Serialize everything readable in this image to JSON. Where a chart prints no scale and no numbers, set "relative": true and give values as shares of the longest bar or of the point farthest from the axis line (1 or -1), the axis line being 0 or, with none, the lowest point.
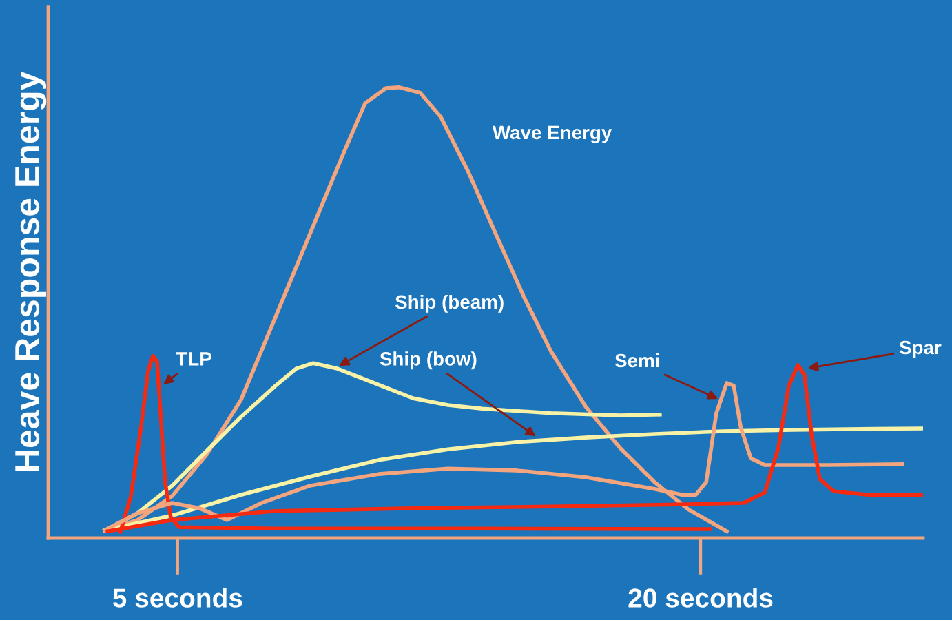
{
  "chart_data": {
    "type": "line",
    "relative": true,
    "ylabel": "Heave Response Energy",
    "xlim": [
      1.29,
      26.38
    ],
    "xticks": [
      {
        "value": 5,
        "label": "5 seconds"
      },
      {
        "value": 20,
        "label": "20 seconds"
      }
    ],
    "grid": false,
    "legend": false,
    "marker": "none",
    "line_style": "solid",
    "series": [
      {
        "name": "Wave Energy",
        "color": "#f4a57e",
        "x": [
          2.91,
          3.85,
          4.84,
          5.83,
          6.82,
          7.81,
          8.79,
          9.78,
          10.38,
          10.97,
          11.36,
          11.96,
          12.55,
          13.34,
          14.13,
          14.92,
          15.71,
          16.7,
          17.69,
          18.68,
          19.66,
          20.75
        ],
        "values": [
          0.017,
          0.04,
          0.093,
          0.185,
          0.307,
          0.491,
          0.674,
          0.858,
          0.965,
          0.998,
          1.0,
          0.988,
          0.934,
          0.812,
          0.674,
          0.537,
          0.414,
          0.292,
          0.2,
          0.124,
          0.063,
          0.015
        ]
      },
      {
        "name": "Ship (beam)",
        "color": "#f7f2a6",
        "x": [
          2.91,
          3.85,
          4.84,
          5.83,
          6.82,
          7.81,
          8.4,
          8.89,
          9.58,
          10.57,
          11.76,
          12.75,
          13.74,
          15.71,
          17.69,
          18.83
        ],
        "values": [
          0.017,
          0.055,
          0.116,
          0.193,
          0.269,
          0.338,
          0.376,
          0.388,
          0.376,
          0.346,
          0.31,
          0.295,
          0.287,
          0.277,
          0.272,
          0.274
        ]
      },
      {
        "name": "Ship (bow)",
        "color": "#f7f2a6",
        "x": [
          2.91,
          4.84,
          6.82,
          8.79,
          10.77,
          12.75,
          14.72,
          16.7,
          18.68,
          20.65,
          22.63,
          24.6,
          26.38
        ],
        "values": [
          0.017,
          0.05,
          0.096,
          0.136,
          0.173,
          0.197,
          0.213,
          0.223,
          0.231,
          0.237,
          0.24,
          0.242,
          0.243
        ]
      },
      {
        "name": "TLP",
        "color": "#f52a10",
        "x": [
          3.36,
          3.66,
          3.95,
          4.15,
          4.29,
          4.41,
          4.51,
          4.64,
          4.8,
          5.04,
          7.81,
          13.74,
          20.26
        ],
        "values": [
          0.014,
          0.093,
          0.246,
          0.369,
          0.404,
          0.391,
          0.277,
          0.124,
          0.047,
          0.024,
          0.021,
          0.021,
          0.02
        ]
      },
      {
        "name": "Semi",
        "color": "#f4a57e",
        "x": [
          2.91,
          3.85,
          4.84,
          5.63,
          6.42,
          7.41,
          8.79,
          10.77,
          12.75,
          14.72,
          16.7,
          18.68,
          19.47,
          19.86,
          20.16,
          20.45,
          20.75,
          20.95,
          21.15,
          21.44,
          21.84,
          23.62,
          25.79
        ],
        "values": [
          0.017,
          0.055,
          0.078,
          0.066,
          0.04,
          0.078,
          0.116,
          0.142,
          0.154,
          0.15,
          0.135,
          0.109,
          0.096,
          0.096,
          0.124,
          0.277,
          0.344,
          0.338,
          0.246,
          0.177,
          0.162,
          0.162,
          0.164
        ]
      },
      {
        "name": "Spar",
        "color": "#f52a10",
        "x": [
          2.99,
          4.84,
          7.81,
          11.76,
          15.71,
          19.66,
          21.24,
          21.84,
          22.23,
          22.53,
          22.79,
          22.98,
          23.18,
          23.42,
          23.81,
          24.8,
          26.38
        ],
        "values": [
          0.015,
          0.04,
          0.06,
          0.066,
          0.07,
          0.075,
          0.078,
          0.101,
          0.2,
          0.338,
          0.384,
          0.361,
          0.231,
          0.131,
          0.104,
          0.096,
          0.096
        ]
      }
    ]
  }
}
